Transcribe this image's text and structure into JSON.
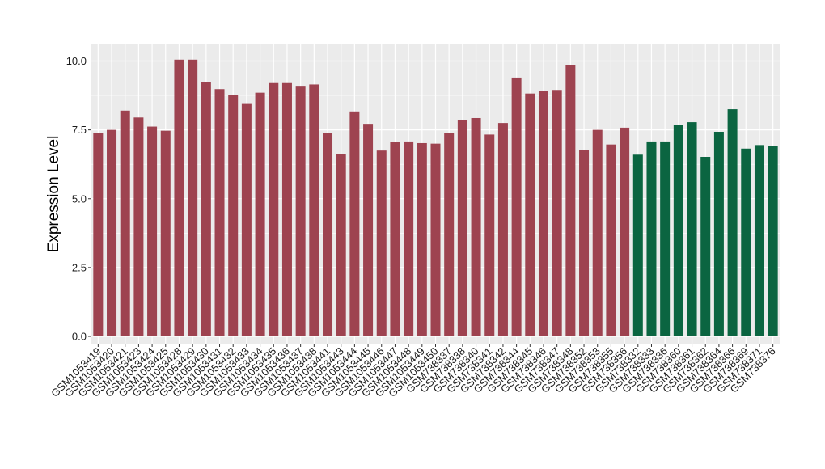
{
  "chart_data": {
    "type": "bar",
    "title": "",
    "xlabel": "",
    "ylabel": "Expression Level",
    "ylim": [
      0,
      10.5
    ],
    "yticks": [
      "0.0",
      "2.5",
      "5.0",
      "7.5",
      "10.0"
    ],
    "ytick_values": [
      0,
      2.5,
      5,
      7.5,
      10
    ],
    "grid": true,
    "legend": "none",
    "colors": {
      "group1": "#9e4350",
      "group2": "#0b6541",
      "panel": "#ebebeb",
      "grid": "#ffffff"
    },
    "categories": [
      "GSM1053419",
      "GSM1053420",
      "GSM1053421",
      "GSM1053423",
      "GSM1053424",
      "GSM1053425",
      "GSM1053428",
      "GSM1053429",
      "GSM1053430",
      "GSM1053431",
      "GSM1053432",
      "GSM1053433",
      "GSM1053434",
      "GSM1053435",
      "GSM1053436",
      "GSM1053437",
      "GSM1053438",
      "GSM1053441",
      "GSM1053443",
      "GSM1053444",
      "GSM1053445",
      "GSM1053446",
      "GSM1053447",
      "GSM1053448",
      "GSM1053449",
      "GSM1053450",
      "GSM738337",
      "GSM738338",
      "GSM738340",
      "GSM738341",
      "GSM738342",
      "GSM738344",
      "GSM738345",
      "GSM738346",
      "GSM738347",
      "GSM738348",
      "GSM738352",
      "GSM738353",
      "GSM738355",
      "GSM738356",
      "GSM738332",
      "GSM738333",
      "GSM738336",
      "GSM738360",
      "GSM738361",
      "GSM738362",
      "GSM738364",
      "GSM738366",
      "GSM738369",
      "GSM738371",
      "GSM738376"
    ],
    "values": [
      7.38,
      7.5,
      8.2,
      7.95,
      7.62,
      7.47,
      10.05,
      10.05,
      9.25,
      8.98,
      8.78,
      8.47,
      8.85,
      9.2,
      9.2,
      9.1,
      9.15,
      7.4,
      6.62,
      8.17,
      7.72,
      6.75,
      7.05,
      7.08,
      7.02,
      7.0,
      7.38,
      7.85,
      7.93,
      7.33,
      7.75,
      9.4,
      8.82,
      8.9,
      8.95,
      9.85,
      6.78,
      7.5,
      6.97,
      7.58,
      6.6,
      7.08,
      7.08,
      7.67,
      7.78,
      6.52,
      7.43,
      8.25,
      6.82,
      6.95,
      6.93
    ],
    "groups": [
      1,
      1,
      1,
      1,
      1,
      1,
      1,
      1,
      1,
      1,
      1,
      1,
      1,
      1,
      1,
      1,
      1,
      1,
      1,
      1,
      1,
      1,
      1,
      1,
      1,
      1,
      1,
      1,
      1,
      1,
      1,
      1,
      1,
      1,
      1,
      1,
      1,
      1,
      1,
      1,
      2,
      2,
      2,
      2,
      2,
      2,
      2,
      2,
      2,
      2,
      2
    ]
  }
}
